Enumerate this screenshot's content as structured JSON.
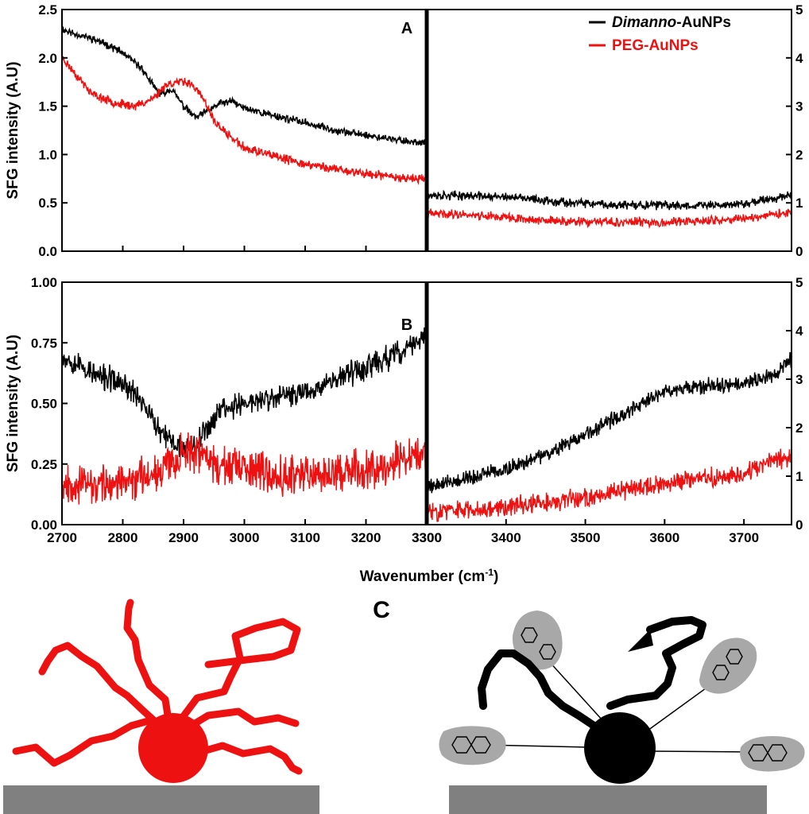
{
  "colors": {
    "series1": "#000000",
    "series2": "#ee1111",
    "ground": "#808080",
    "blob": "#a8a8a8"
  },
  "xlabel_main": "Wavenumber (cm",
  "xlabel_sup": "-1",
  "xlabel_end": ")",
  "panel_c_label": "C",
  "chart_data": [
    {
      "type": "line",
      "panel": "A",
      "ylabel": "SFG intensity (A.U)",
      "legend": {
        "placement": "top-right",
        "entries": [
          {
            "parts": [
              {
                "text": "Dimanno",
                "italic": true
              },
              {
                "text": "-AuNPs",
                "italic": false
              }
            ],
            "color": "#000000"
          },
          {
            "parts": [
              {
                "text": "PEG-AuNPs",
                "italic": false
              }
            ],
            "color": "#ee1111"
          }
        ]
      },
      "left": {
        "xlim": [
          2700,
          3300
        ],
        "ylim": [
          0,
          2.5
        ],
        "xticks": [
          2700,
          2800,
          2900,
          3000,
          3100,
          3200,
          3300
        ],
        "yticks": [
          "0.0",
          "0.5",
          "1.0",
          "1.5",
          "2.0",
          "2.5"
        ],
        "series": [
          {
            "color": "#000000",
            "noise": 0.03,
            "seed": 11,
            "x": [
              2700,
              2720,
              2750,
              2780,
              2800,
              2830,
              2860,
              2880,
              2900,
              2920,
              2940,
              2960,
              2980,
              3000,
              3050,
              3100,
              3150,
              3200,
              3250,
              3300
            ],
            "y": [
              2.3,
              2.25,
              2.2,
              2.12,
              2.05,
              1.9,
              1.62,
              1.68,
              1.5,
              1.38,
              1.45,
              1.53,
              1.55,
              1.48,
              1.4,
              1.33,
              1.25,
              1.2,
              1.15,
              1.12
            ]
          },
          {
            "color": "#ee1111",
            "noise": 0.035,
            "seed": 23,
            "x": [
              2700,
              2720,
              2750,
              2780,
              2800,
              2820,
              2850,
              2870,
              2890,
              2910,
              2930,
              2950,
              2970,
              3000,
              3050,
              3100,
              3150,
              3200,
              3250,
              3300
            ],
            "y": [
              2.0,
              1.85,
              1.62,
              1.55,
              1.52,
              1.5,
              1.58,
              1.72,
              1.75,
              1.75,
              1.6,
              1.35,
              1.22,
              1.07,
              0.98,
              0.9,
              0.85,
              0.8,
              0.77,
              0.74
            ]
          }
        ]
      },
      "right": {
        "xlim": [
          3300,
          3760
        ],
        "ylim": [
          0,
          5
        ],
        "yticks": [
          "0",
          "1",
          "2",
          "3",
          "4",
          "5"
        ],
        "series": [
          {
            "color": "#000000",
            "noise": 0.07,
            "seed": 37,
            "x": [
              3300,
              3350,
              3400,
              3450,
              3500,
              3550,
              3600,
              3650,
              3700,
              3760
            ],
            "y": [
              1.15,
              1.15,
              1.12,
              1.05,
              0.98,
              0.95,
              0.95,
              0.95,
              0.98,
              1.18
            ]
          },
          {
            "color": "#ee1111",
            "noise": 0.07,
            "seed": 41,
            "x": [
              3300,
              3350,
              3400,
              3450,
              3500,
              3550,
              3600,
              3650,
              3700,
              3760
            ],
            "y": [
              0.78,
              0.76,
              0.7,
              0.63,
              0.6,
              0.6,
              0.6,
              0.62,
              0.68,
              0.8
            ]
          }
        ]
      }
    },
    {
      "type": "line",
      "panel": "B",
      "ylabel": "SFG intensity (A.U)",
      "xlabel": "Wavenumber (cm-1)",
      "left": {
        "xlim": [
          2700,
          3300
        ],
        "ylim": [
          0,
          1
        ],
        "xticks": [
          2700,
          2800,
          2900,
          3000,
          3100,
          3200,
          3300
        ],
        "yticks": [
          "0.00",
          "0.25",
          "0.50",
          "0.75",
          "1.00"
        ],
        "series": [
          {
            "color": "#000000",
            "noise": 0.04,
            "seed": 53,
            "x": [
              2700,
              2720,
              2740,
              2760,
              2780,
              2800,
              2830,
              2860,
              2880,
              2900,
              2920,
              2940,
              2960,
              3000,
              3050,
              3100,
              3150,
              3200,
              3250,
              3300
            ],
            "y": [
              0.7,
              0.67,
              0.64,
              0.61,
              0.6,
              0.58,
              0.52,
              0.38,
              0.34,
              0.32,
              0.34,
              0.4,
              0.48,
              0.5,
              0.52,
              0.55,
              0.6,
              0.65,
              0.7,
              0.78
            ]
          },
          {
            "color": "#ee1111",
            "noise": 0.06,
            "seed": 67,
            "x": [
              2700,
              2720,
              2750,
              2800,
              2850,
              2880,
              2900,
              2920,
              2950,
              3000,
              3050,
              3100,
              3150,
              3200,
              3250,
              3300
            ],
            "y": [
              0.18,
              0.17,
              0.16,
              0.17,
              0.22,
              0.26,
              0.3,
              0.3,
              0.25,
              0.22,
              0.21,
              0.21,
              0.22,
              0.23,
              0.26,
              0.3
            ]
          }
        ]
      },
      "right": {
        "xlim": [
          3300,
          3760
        ],
        "ylim": [
          0,
          5
        ],
        "xticks": [
          3300,
          3400,
          3500,
          3600,
          3700
        ],
        "yticks": [
          "0",
          "1",
          "2",
          "3",
          "4",
          "5"
        ],
        "series": [
          {
            "color": "#000000",
            "noise": 0.12,
            "seed": 79,
            "x": [
              3300,
              3350,
              3400,
              3450,
              3500,
              3550,
              3600,
              3650,
              3700,
              3740,
              3760
            ],
            "y": [
              0.8,
              0.95,
              1.15,
              1.45,
              1.85,
              2.3,
              2.75,
              2.85,
              2.9,
              3.1,
              3.4
            ]
          },
          {
            "color": "#ee1111",
            "noise": 0.15,
            "seed": 83,
            "x": [
              3300,
              3350,
              3400,
              3450,
              3500,
              3550,
              3600,
              3650,
              3700,
              3730,
              3760
            ],
            "y": [
              0.28,
              0.3,
              0.38,
              0.45,
              0.55,
              0.7,
              0.85,
              0.95,
              1.05,
              1.3,
              1.4
            ]
          }
        ]
      }
    }
  ]
}
